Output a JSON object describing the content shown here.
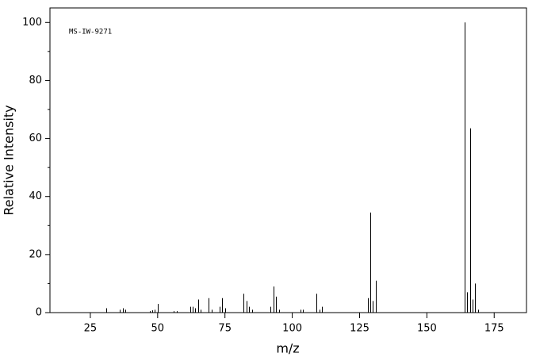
{
  "chart_data": {
    "type": "bar",
    "annotation": "MS-IW-9271",
    "x_label": "m/z",
    "y_label": "Relative Intensity",
    "x": [
      31,
      36,
      37,
      38,
      47,
      48,
      49,
      50,
      56,
      57,
      62,
      63,
      64,
      65,
      66,
      69,
      70,
      73,
      74,
      75,
      82,
      83,
      84,
      85,
      92,
      93,
      94,
      95,
      103,
      104,
      109,
      110,
      111,
      128,
      129,
      130,
      131,
      164,
      165,
      166,
      167,
      168,
      169
    ],
    "values": [
      1.5,
      1,
      1.5,
      1,
      0.5,
      0.8,
      1,
      3,
      0.5,
      0.5,
      2,
      2,
      1.5,
      4.5,
      1,
      5,
      1,
      2,
      5,
      1.5,
      6.5,
      4,
      2,
      1,
      2,
      9,
      5.5,
      1,
      1,
      1,
      6.5,
      1,
      2,
      5,
      34.5,
      4,
      11,
      100,
      7,
      63.5,
      4.5,
      10,
      1
    ],
    "color": "#000000",
    "xlim": [
      10,
      187
    ],
    "xticks": [
      25,
      50,
      75,
      100,
      125,
      150,
      175
    ],
    "ylim": [
      0,
      105
    ],
    "yticks": [
      0,
      20,
      40,
      60,
      80,
      100
    ],
    "yminorticks": [
      10,
      30,
      50,
      70,
      90
    ],
    "grid": false
  }
}
